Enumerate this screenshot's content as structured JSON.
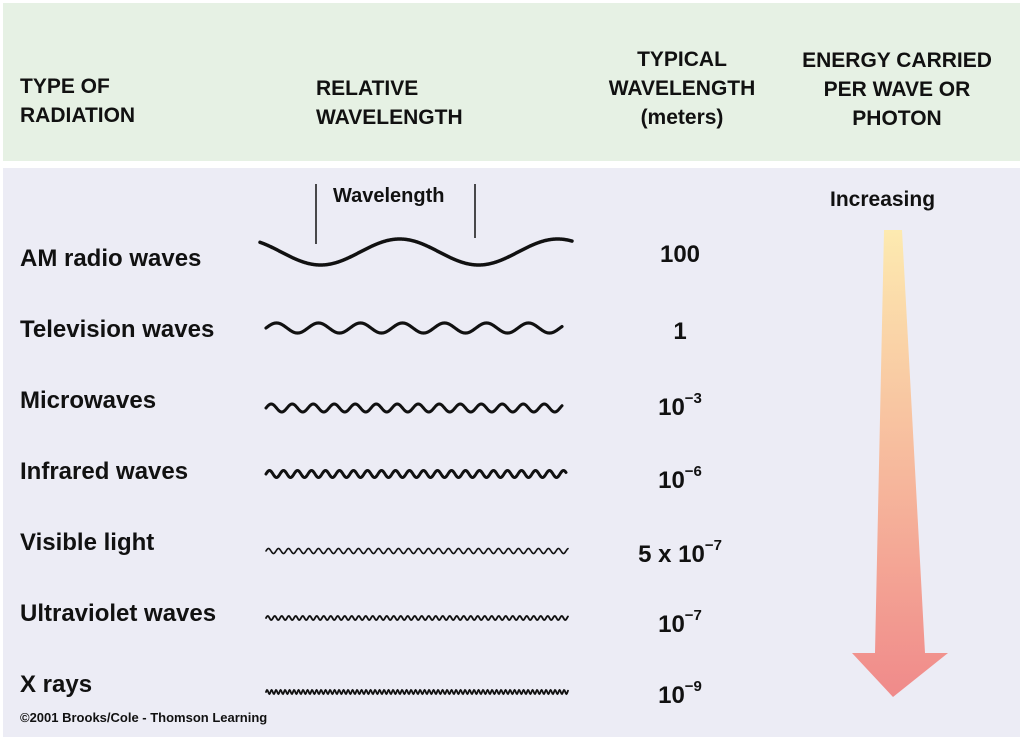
{
  "header": {
    "type_of_radiation": [
      "TYPE OF",
      "RADIATION"
    ],
    "relative_wavelength": [
      "RELATIVE",
      "WAVELENGTH"
    ],
    "typical_wavelength": [
      "TYPICAL",
      "WAVELENGTH",
      "(meters)"
    ],
    "energy": [
      "ENERGY CARRIED",
      "PER WAVE OR",
      "PHOTON"
    ]
  },
  "wavelength_marker_label": "Wavelength",
  "energy_indicator": {
    "label": "Increasing",
    "gradient_top": "#fdeab0",
    "gradient_bottom": "#f08a8a"
  },
  "rows": [
    {
      "name": "AM radio waves",
      "base": "100",
      "exp": ""
    },
    {
      "name": "Television waves",
      "base": "1",
      "exp": ""
    },
    {
      "name": "Microwaves",
      "base": "10",
      "exp": "−3"
    },
    {
      "name": "Infrared waves",
      "base": "10",
      "exp": "−6"
    },
    {
      "name": "Visible light",
      "base": "5 x 10",
      "exp": "−7"
    },
    {
      "name": "Ultraviolet waves",
      "base": "10",
      "exp": "−7"
    },
    {
      "name": "X rays",
      "base": "10",
      "exp": "−9"
    }
  ],
  "copyright": "©2001 Brooks/Cole - Thomson Learning",
  "colors": {
    "header_bg": "#e6f1e4",
    "panel_bg": "#ececf5",
    "ink": "#111111"
  }
}
